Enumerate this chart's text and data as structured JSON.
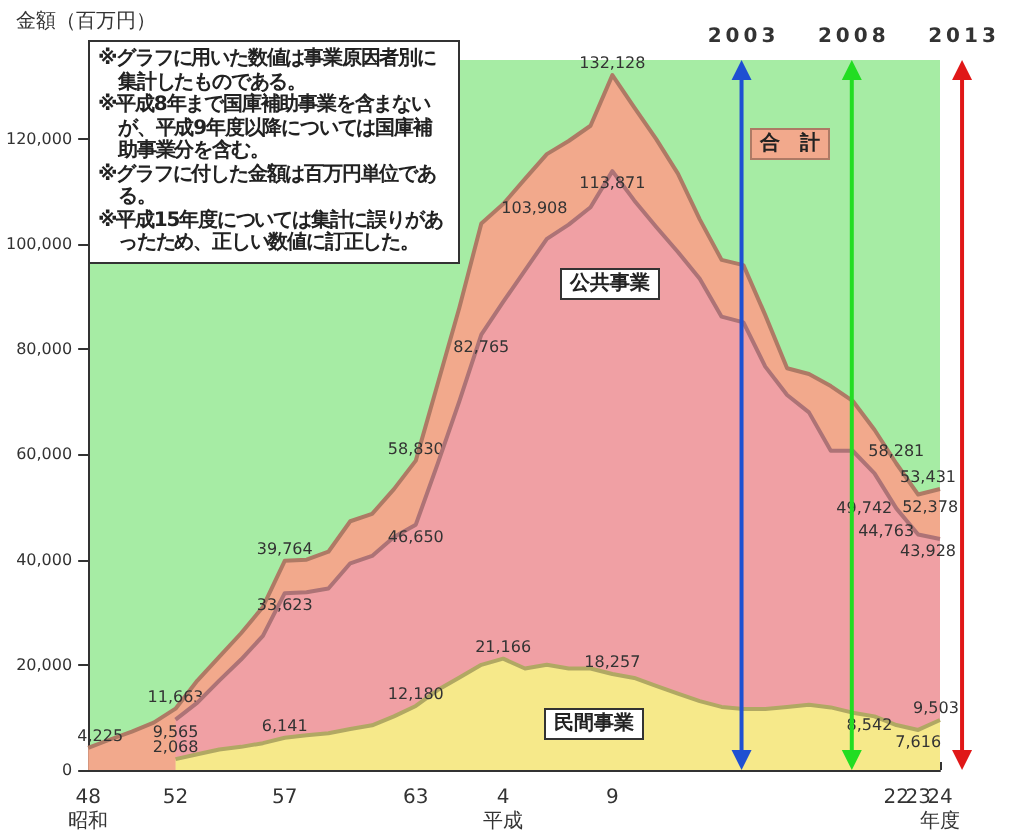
{
  "chart_data": {
    "type": "area",
    "ylabel": "金額（百万円）",
    "categories": [
      "48\n昭和",
      null,
      null,
      null,
      "52",
      null,
      null,
      null,
      null,
      "57",
      null,
      null,
      null,
      null,
      null,
      "63",
      null,
      null,
      null,
      "4\n平成",
      null,
      null,
      null,
      null,
      "9",
      null,
      null,
      null,
      null,
      null,
      null,
      null,
      null,
      null,
      null,
      null,
      null,
      "22",
      "23",
      "24\n年度"
    ],
    "ylim": [
      0,
      135000
    ],
    "yticks": [
      0,
      {
        "value": 20000,
        "label": "20,000"
      },
      {
        "value": 40000,
        "label": "40,000"
      },
      {
        "value": 60000,
        "label": "60,000"
      },
      {
        "value": 80000,
        "label": "80,000"
      },
      {
        "value": 100000,
        "label": "100,000"
      },
      {
        "value": 120000,
        "label": "120,000"
      }
    ],
    "marker": "none",
    "series": [
      {
        "name": "合　計",
        "color": "#f2a98c",
        "values": [
          4225,
          5800,
          7300,
          9000,
          11663,
          17000,
          21500,
          26000,
          31000,
          39764,
          40000,
          41500,
          47300,
          48700,
          53400,
          58830,
          73400,
          88000,
          103908,
          107600,
          112400,
          117100,
          119600,
          122500,
          132128,
          126000,
          120000,
          113400,
          104700,
          97000,
          96000,
          86500,
          76400,
          75300,
          73000,
          70200,
          64700,
          58281,
          52378,
          53431
        ],
        "value_labels": [
          "4,225",
          null,
          null,
          null,
          "11,663",
          null,
          null,
          null,
          null,
          "39,764",
          null,
          null,
          null,
          null,
          null,
          "58,830",
          null,
          null,
          "103,908",
          null,
          null,
          null,
          null,
          null,
          "132,128",
          null,
          null,
          null,
          null,
          null,
          null,
          null,
          null,
          null,
          null,
          null,
          null,
          "58,281",
          "52,378",
          "53,431"
        ]
      },
      {
        "name": "公共事業",
        "color": "#f0a0a4",
        "values": [
          null,
          null,
          null,
          null,
          9565,
          12800,
          17000,
          21000,
          25500,
          33623,
          33800,
          34500,
          39300,
          40700,
          44300,
          46650,
          58200,
          70200,
          82765,
          89000,
          95000,
          101000,
          103700,
          107000,
          113871,
          108300,
          103300,
          98500,
          93400,
          86200,
          85100,
          76700,
          71300,
          68000,
          60700,
          60700,
          56400,
          49742,
          44763,
          43928
        ],
        "value_labels": [
          null,
          null,
          null,
          null,
          "9,565",
          null,
          null,
          null,
          null,
          "33,623",
          null,
          null,
          null,
          null,
          null,
          "46,650",
          null,
          null,
          "82,765",
          null,
          null,
          null,
          null,
          null,
          "113,871",
          null,
          null,
          null,
          null,
          null,
          null,
          null,
          null,
          null,
          null,
          null,
          null,
          "49,742",
          "44,763",
          "43,928"
        ]
      },
      {
        "name": "民間事業",
        "color": "#f6e98a",
        "values": [
          null,
          null,
          null,
          null,
          2068,
          3000,
          3900,
          4400,
          5100,
          6141,
          6600,
          7000,
          7800,
          8500,
          10200,
          12180,
          15200,
          17600,
          20000,
          21166,
          19300,
          20000,
          19300,
          19300,
          18257,
          17500,
          16000,
          14500,
          13100,
          12000,
          11600,
          11600,
          12000,
          12400,
          11900,
          10900,
          10200,
          8542,
          7616,
          9503
        ],
        "value_labels": [
          null,
          null,
          null,
          null,
          "2,068",
          null,
          null,
          null,
          null,
          "6,141",
          null,
          null,
          null,
          null,
          null,
          "12,180",
          null,
          null,
          null,
          "21,166",
          null,
          null,
          null,
          null,
          "18,257",
          null,
          null,
          null,
          null,
          null,
          null,
          null,
          null,
          null,
          null,
          null,
          null,
          "8,542",
          "7,616",
          "9,503"
        ]
      }
    ],
    "annotations": [
      "※グラフに用いた数値は事業原因者別に集計したものである。",
      "※平成8年まで国庫補助事業を含まないが、平成9年度以降については国庫補助事業分を含む。",
      "※グラフに付した金額は百万円単位である。",
      "※平成15年度については集計に誤りがあったため、正しい数値に訂正した。",
      "2003",
      "2008",
      "2013"
    ]
  }
}
